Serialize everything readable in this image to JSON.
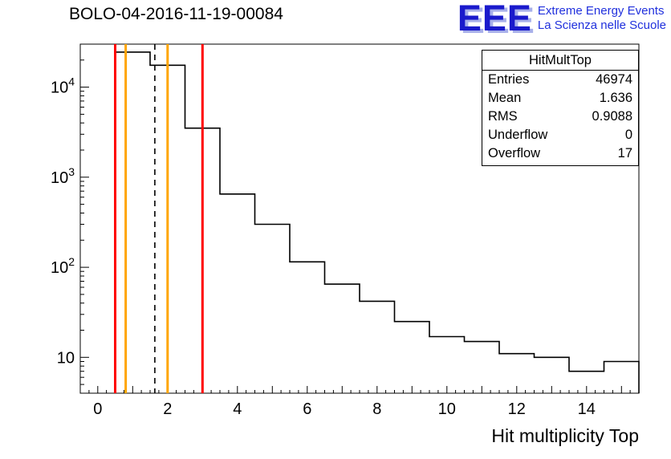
{
  "header": {
    "title": "BOLO-04-2016-11-19-00084",
    "logo": {
      "text": "EEE",
      "line1": "Extreme Energy Events",
      "line2": "La Scienza nelle Scuole",
      "text_color": "#1a1acc",
      "shadow_color": "#a8b0ea",
      "subtitle_color": "#2030dd"
    }
  },
  "stats": {
    "title": "HitMultTop",
    "rows": [
      {
        "label": "Entries",
        "value": "46974"
      },
      {
        "label": "Mean",
        "value": "1.636"
      },
      {
        "label": "RMS",
        "value": "0.9088"
      },
      {
        "label": "Underflow",
        "value": "0"
      },
      {
        "label": "Overflow",
        "value": "17"
      }
    ]
  },
  "chart_data": {
    "type": "bar",
    "subtype": "step-histogram",
    "title": "BOLO-04-2016-11-19-00084",
    "xlabel": "Hit multiplicity Top",
    "ylabel": "",
    "x_range": [
      -0.5,
      15.5
    ],
    "y_range": [
      4,
      30000
    ],
    "y_scale": "log",
    "grid": "off",
    "bin_width": 1,
    "bin_centers": [
      1,
      2,
      3,
      4,
      5,
      6,
      7,
      8,
      9,
      10,
      11,
      12,
      13,
      14,
      15
    ],
    "counts": [
      24500,
      17500,
      3500,
      650,
      300,
      115,
      65,
      42,
      25,
      17,
      15,
      11,
      10,
      7,
      9
    ],
    "line_color": "#000000",
    "x_ticks_labeled": [
      0,
      2,
      4,
      6,
      8,
      10,
      12,
      14
    ],
    "x_minor_tick_step": 0.25,
    "y_ticks": [
      {
        "value": 10,
        "base": "10",
        "exp": ""
      },
      {
        "value": 100,
        "base": "10",
        "exp": "2"
      },
      {
        "value": 1000,
        "base": "10",
        "exp": "3"
      },
      {
        "value": 10000,
        "base": "10",
        "exp": "4"
      }
    ],
    "marker_lines": [
      {
        "x": 0.5,
        "color": "#ff0000",
        "style": "solid",
        "name": "red-lower-threshold"
      },
      {
        "x": 0.8,
        "color": "#ffa500",
        "style": "solid",
        "name": "orange-lower-threshold"
      },
      {
        "x": 1.636,
        "color": "#000000",
        "style": "dashed",
        "name": "mean"
      },
      {
        "x": 2.0,
        "color": "#ffa500",
        "style": "solid",
        "name": "orange-upper-threshold"
      },
      {
        "x": 3.0,
        "color": "#ff0000",
        "style": "solid",
        "name": "red-upper-threshold"
      }
    ]
  }
}
